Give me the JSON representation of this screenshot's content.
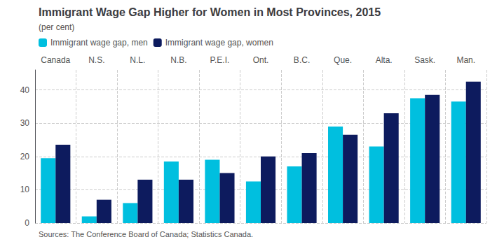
{
  "chart_data": {
    "type": "bar",
    "title": "Immigrant Wage Gap Higher for Women in Most Provinces, 2015",
    "subtitle": "(per cent)",
    "categories": [
      "Canada",
      "N.S.",
      "N.L.",
      "N.B.",
      "P.E.I.",
      "Ont.",
      "B.C.",
      "Que.",
      "Alta.",
      "Sask.",
      "Man."
    ],
    "series": [
      {
        "name": "Immigrant wage gap, men",
        "color": "#00BFDF",
        "values": [
          19.5,
          2.0,
          6.0,
          18.5,
          19.0,
          12.5,
          17.0,
          29.0,
          23.0,
          37.5,
          36.5
        ]
      },
      {
        "name": "Immigrant wage gap, women",
        "color": "#0D1B5E",
        "values": [
          23.5,
          7.0,
          13.0,
          13.0,
          15.0,
          20.0,
          21.0,
          26.5,
          33.0,
          38.5,
          42.5
        ]
      }
    ],
    "ylim": [
      0,
      46
    ],
    "yticks": [
      0,
      10,
      20,
      30,
      40
    ],
    "grid": true,
    "legend": "upper left",
    "annotations": [
      "Sources: The Conference Board of Canada; Statistics Canada."
    ]
  }
}
